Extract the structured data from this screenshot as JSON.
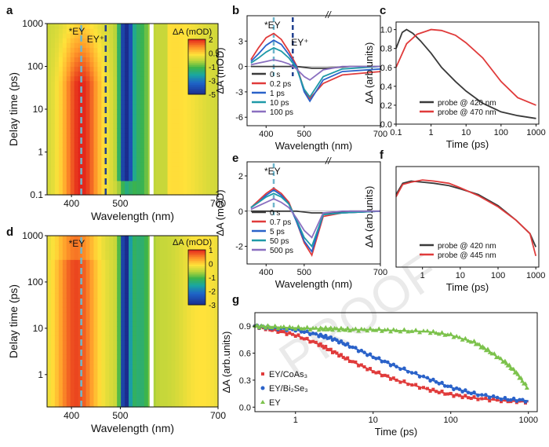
{
  "figure": {
    "watermark": "PROOF",
    "colors": {
      "axis": "#111111",
      "black": "#3a3a3a",
      "red": "#e03b3b",
      "blue": "#2a62c9",
      "teal": "#1f9aa8",
      "green": "#2e8b57",
      "purple": "#8a6fc0",
      "lightgreen": "#7cc24c",
      "dash_ey": "#6fb6cc",
      "dash_eyplus": "#1f3f8f"
    }
  },
  "chart_data": [
    {
      "id": "a",
      "type": "heatmap",
      "panel_label": "a",
      "xlabel": "Wavelength (nm)",
      "ylabel": "Delay time (ps)",
      "xticks": [
        "400",
        "500",
        "700"
      ],
      "yticks": [
        "0.1",
        "1",
        "10",
        "100",
        "1000"
      ],
      "xlim": [
        350,
        700
      ],
      "ylim": [
        0.1,
        1000
      ],
      "yscale": "log",
      "colorbar": {
        "title": "ΔA (mOD)",
        "ticks": [
          "2",
          "0.5",
          "-1",
          "-3",
          "-5"
        ],
        "range": [
          -5,
          2
        ]
      },
      "annotations": [
        "*EY",
        "EY⁺"
      ],
      "markers_nm": [
        420,
        470
      ]
    },
    {
      "id": "d",
      "type": "heatmap",
      "panel_label": "d",
      "xlabel": "Wavelength (nm)",
      "ylabel": "Delay time (ps)",
      "xticks": [
        "400",
        "500",
        "700"
      ],
      "yticks": [
        "1",
        "10",
        "100",
        "1000"
      ],
      "xlim": [
        350,
        700
      ],
      "ylim": [
        0.2,
        1000
      ],
      "yscale": "log",
      "colorbar": {
        "title": "ΔA (mOD)",
        "ticks": [
          "1",
          "0",
          "-1",
          "-2",
          "-3"
        ],
        "range": [
          -3,
          1.3
        ]
      },
      "annotations": [
        "*EY"
      ],
      "markers_nm": [
        420
      ]
    },
    {
      "id": "b",
      "type": "line",
      "panel_label": "b",
      "xlabel": "Wavelength (nm)",
      "ylabel": "ΔA (mOD)",
      "xticks": [
        "400",
        "500",
        "700"
      ],
      "yticks": [
        "3",
        "0",
        "-3",
        "-6"
      ],
      "xlim": [
        350,
        700
      ],
      "ylim": [
        -7,
        6
      ],
      "annotations": [
        "*EY",
        "EY⁺"
      ],
      "markers_nm": [
        420,
        470
      ],
      "series": [
        {
          "name": "0 s",
          "color": "black",
          "x": [
            360,
            400,
            440,
            480,
            520,
            560,
            620,
            700
          ],
          "y": [
            0,
            0,
            0,
            0,
            -0.2,
            -0.2,
            0,
            0
          ]
        },
        {
          "name": "0.2 ps",
          "color": "red",
          "x": [
            360,
            380,
            400,
            420,
            440,
            460,
            480,
            500,
            515,
            550,
            600,
            700
          ],
          "y": [
            0.8,
            2.2,
            3.4,
            3.9,
            3.2,
            1.8,
            0.1,
            -2.8,
            -3.8,
            -2.0,
            -1.0,
            -0.6
          ]
        },
        {
          "name": "1 ps",
          "color": "blue",
          "x": [
            360,
            380,
            400,
            420,
            440,
            460,
            480,
            500,
            515,
            550,
            600,
            700
          ],
          "y": [
            0.6,
            1.5,
            2.5,
            3.1,
            2.6,
            1.4,
            0.0,
            -3.0,
            -4.1,
            -1.6,
            -0.6,
            -0.3
          ]
        },
        {
          "name": "10 ps",
          "color": "teal",
          "x": [
            360,
            380,
            400,
            420,
            440,
            460,
            480,
            500,
            515,
            550,
            600,
            700
          ],
          "y": [
            0.4,
            1.0,
            1.7,
            2.2,
            1.8,
            1.0,
            -0.2,
            -2.7,
            -3.6,
            -1.2,
            -0.3,
            0.0
          ]
        },
        {
          "name": "100 ps",
          "color": "purple",
          "x": [
            360,
            380,
            400,
            420,
            440,
            460,
            480,
            500,
            515,
            550,
            600,
            700
          ],
          "y": [
            0.2,
            0.4,
            0.6,
            0.8,
            0.6,
            0.3,
            -0.3,
            -1.2,
            -1.6,
            -0.4,
            0.0,
            0.0
          ]
        }
      ]
    },
    {
      "id": "e",
      "type": "line",
      "panel_label": "e",
      "xlabel": "Wavelength (nm)",
      "ylabel": "ΔA (mOD)",
      "xticks": [
        "400",
        "500",
        "700"
      ],
      "yticks": [
        "2",
        "0",
        "-2"
      ],
      "xlim": [
        350,
        700
      ],
      "ylim": [
        -3,
        2.8
      ],
      "annotations": [
        "*EY"
      ],
      "markers_nm": [
        420
      ],
      "series": [
        {
          "name": "0 s",
          "color": "black",
          "x": [
            360,
            400,
            440,
            480,
            520,
            560,
            620,
            700
          ],
          "y": [
            0,
            0,
            0,
            0,
            -0.1,
            -0.1,
            0,
            0
          ]
        },
        {
          "name": "0.7 ps",
          "color": "red",
          "x": [
            360,
            380,
            400,
            420,
            440,
            460,
            480,
            500,
            520,
            550,
            600,
            700
          ],
          "y": [
            0.2,
            0.6,
            1.0,
            1.3,
            1.0,
            0.5,
            -0.6,
            -1.8,
            -2.5,
            -0.3,
            -0.1,
            0.0
          ]
        },
        {
          "name": "5 ps",
          "color": "blue",
          "x": [
            360,
            380,
            400,
            420,
            440,
            460,
            480,
            500,
            520,
            550,
            600,
            700
          ],
          "y": [
            0.2,
            0.5,
            0.9,
            1.2,
            0.9,
            0.4,
            -0.6,
            -1.7,
            -2.3,
            -0.2,
            -0.1,
            0.0
          ]
        },
        {
          "name": "50 ps",
          "color": "teal",
          "x": [
            360,
            380,
            400,
            420,
            440,
            460,
            480,
            500,
            520,
            550,
            600,
            700
          ],
          "y": [
            0.2,
            0.5,
            0.8,
            1.0,
            0.8,
            0.4,
            -0.5,
            -1.5,
            -2.0,
            -0.2,
            -0.1,
            0.0
          ]
        },
        {
          "name": "500 ps",
          "color": "purple",
          "x": [
            360,
            380,
            400,
            420,
            440,
            460,
            480,
            500,
            520,
            550,
            600,
            700
          ],
          "y": [
            0.1,
            0.3,
            0.5,
            0.7,
            0.5,
            0.2,
            -0.4,
            -1.1,
            -1.5,
            -0.1,
            0.0,
            0.0
          ]
        }
      ]
    },
    {
      "id": "c",
      "type": "line",
      "panel_label": "c",
      "xlabel": "Time (ps)",
      "ylabel": "ΔA (arb.units)",
      "xticks": [
        "0.1",
        "1",
        "10",
        "100",
        "1000"
      ],
      "yticks": [
        "0.0",
        "0.2",
        "0.4",
        "0.6",
        "0.8",
        "1.0"
      ],
      "xlim": [
        0.1,
        1200
      ],
      "ylim": [
        0,
        1.08
      ],
      "xscale": "log",
      "series": [
        {
          "name": "probe @ 420 nm",
          "color": "black",
          "x": [
            0.1,
            0.15,
            0.2,
            0.3,
            0.5,
            1,
            2,
            5,
            10,
            30,
            100,
            300,
            1000
          ],
          "y": [
            0.8,
            0.97,
            1.0,
            0.96,
            0.88,
            0.75,
            0.6,
            0.45,
            0.35,
            0.22,
            0.13,
            0.09,
            0.06
          ]
        },
        {
          "name": "probe @ 470 nm",
          "color": "red",
          "x": [
            0.1,
            0.2,
            0.4,
            0.7,
            1,
            2,
            5,
            10,
            30,
            100,
            300,
            1000
          ],
          "y": [
            0.6,
            0.85,
            0.95,
            0.98,
            1.0,
            0.99,
            0.94,
            0.86,
            0.7,
            0.45,
            0.28,
            0.2
          ]
        }
      ]
    },
    {
      "id": "f",
      "type": "line",
      "panel_label": "f",
      "xlabel": "Time (ps)",
      "ylabel": "ΔA (arb.units)",
      "xticks": [
        "1",
        "10",
        "100",
        "1000"
      ],
      "yticks": [],
      "xlim": [
        0.2,
        1200
      ],
      "ylim": [
        0.2,
        1.1
      ],
      "xscale": "log",
      "series": [
        {
          "name": "probe @ 420 nm",
          "color": "black",
          "x": [
            0.2,
            0.3,
            0.5,
            1,
            2,
            5,
            10,
            30,
            100,
            300,
            700,
            1000
          ],
          "y": [
            0.85,
            0.95,
            0.97,
            0.96,
            0.95,
            0.93,
            0.9,
            0.85,
            0.75,
            0.62,
            0.5,
            0.38
          ]
        },
        {
          "name": "probe @ 445 nm",
          "color": "red",
          "x": [
            0.2,
            0.3,
            0.5,
            1,
            2,
            5,
            10,
            30,
            100,
            300,
            700,
            1000
          ],
          "y": [
            0.83,
            0.94,
            0.96,
            0.98,
            0.97,
            0.95,
            0.91,
            0.84,
            0.74,
            0.62,
            0.5,
            0.3
          ]
        }
      ]
    },
    {
      "id": "g",
      "type": "scatter",
      "panel_label": "g",
      "xlabel": "Time (ps)",
      "ylabel": "ΔA (arb.units)",
      "xticks": [
        "1",
        "10",
        "100",
        "1000"
      ],
      "yticks": [
        "0.0",
        "0.3",
        "0.6",
        "0.9"
      ],
      "xlim": [
        0.3,
        1300
      ],
      "ylim": [
        -0.05,
        1.05
      ],
      "xscale": "log",
      "series": [
        {
          "name": "EY/CoAs₃",
          "color": "red",
          "marker": "square",
          "x": [
            0.3,
            0.5,
            1,
            2,
            3,
            5,
            10,
            20,
            50,
            100,
            200,
            500,
            1000
          ],
          "y": [
            0.9,
            0.86,
            0.8,
            0.7,
            0.62,
            0.52,
            0.4,
            0.3,
            0.2,
            0.14,
            0.1,
            0.07,
            0.06
          ]
        },
        {
          "name": "EY/Bi₂Se₃",
          "color": "blue",
          "marker": "circle",
          "x": [
            0.3,
            0.5,
            1,
            2,
            3,
            5,
            10,
            20,
            50,
            100,
            200,
            500,
            1000
          ],
          "y": [
            0.9,
            0.88,
            0.86,
            0.8,
            0.76,
            0.68,
            0.56,
            0.45,
            0.32,
            0.22,
            0.15,
            0.09,
            0.07
          ]
        },
        {
          "name": "EY",
          "color": "lightgreen",
          "marker": "triangle",
          "x": [
            0.3,
            0.5,
            1,
            2,
            3,
            5,
            10,
            20,
            50,
            100,
            200,
            300,
            500,
            700,
            1000
          ],
          "y": [
            0.9,
            0.89,
            0.88,
            0.87,
            0.87,
            0.86,
            0.86,
            0.85,
            0.84,
            0.8,
            0.72,
            0.63,
            0.5,
            0.38,
            0.2
          ]
        }
      ]
    }
  ]
}
